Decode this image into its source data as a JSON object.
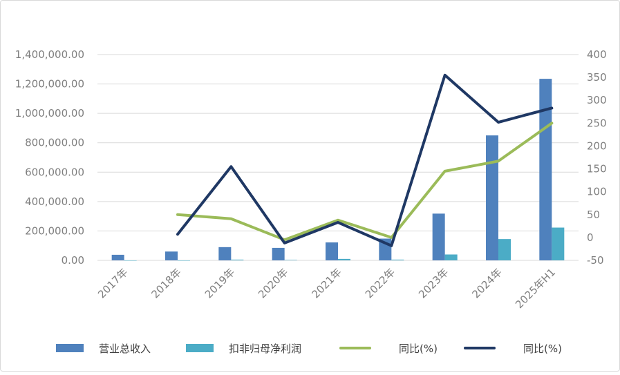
{
  "chart_data": {
    "type": "bar",
    "categories": [
      "2017年",
      "2018年",
      "2019年",
      "2020年",
      "2021年",
      "2022年",
      "2023年",
      "2024年",
      "2025年H1"
    ],
    "left_axis": {
      "ylim": [
        0,
        1400000
      ],
      "ticks": [
        "0.00",
        "200,000.00",
        "400,000.00",
        "600,000.00",
        "800,000.00",
        "1,000,000.00",
        "1,200,000.00",
        "1,400,000.00"
      ]
    },
    "right_axis": {
      "ylim": [
        -50,
        400
      ],
      "ticks": [
        "-50",
        "0",
        "50",
        "100",
        "150",
        "200",
        "250",
        "300",
        "350",
        "400"
      ]
    },
    "series": [
      {
        "name": "营业总收入",
        "type": "bar",
        "axis": "left",
        "color": "#4f81bd",
        "values": [
          38000,
          60000,
          90000,
          85000,
          122000,
          148000,
          318000,
          850000,
          1235000
        ]
      },
      {
        "name": "扣非归母净利润",
        "type": "bar",
        "axis": "left",
        "color": "#4bacc6",
        "values": [
          -2000,
          -1000,
          5000,
          3000,
          10000,
          5000,
          40000,
          145000,
          223000
        ]
      },
      {
        "name": "同比(%)",
        "type": "line",
        "axis": "right",
        "color": "#9bbb59",
        "values": [
          null,
          50,
          41,
          -5,
          38,
          0,
          145,
          167,
          250
        ]
      },
      {
        "name": "同比(%)",
        "type": "line",
        "axis": "right",
        "color": "#1f3864",
        "values": [
          null,
          7,
          155,
          -12,
          33,
          -18,
          355,
          252,
          283
        ]
      }
    ],
    "grid": true,
    "legend_position": "bottom"
  }
}
